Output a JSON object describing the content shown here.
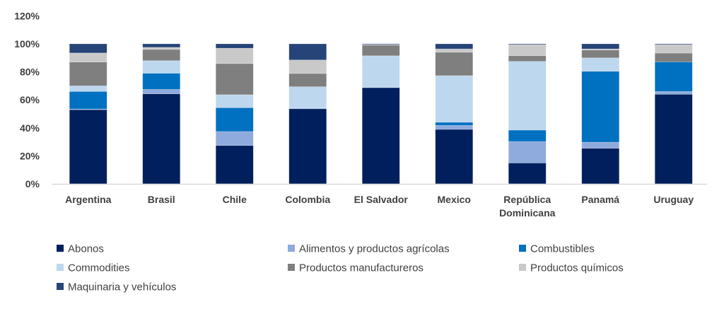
{
  "chart_data": {
    "type": "bar",
    "stacked": true,
    "title": "",
    "xlabel": "",
    "ylabel": "",
    "ylim": [
      0,
      120
    ],
    "yticks": [
      "0%",
      "20%",
      "40%",
      "60%",
      "80%",
      "100%",
      "120%"
    ],
    "ytick_values": [
      0,
      20,
      40,
      60,
      80,
      100,
      120
    ],
    "grid": false,
    "legend_position": "bottom",
    "categories": [
      "Argentina",
      "Brasil",
      "Chile",
      "Colombia",
      "El Salvador",
      "Mexico",
      "República Dominicana",
      "Panamá",
      "Uruguay"
    ],
    "category_lines": [
      [
        "Argentina"
      ],
      [
        "Brasil"
      ],
      [
        "Chile"
      ],
      [
        "Colombia"
      ],
      [
        "El Salvador"
      ],
      [
        "Mexico"
      ],
      [
        "República",
        "Dominicana"
      ],
      [
        "Panamá"
      ],
      [
        "Uruguay"
      ]
    ],
    "series": [
      {
        "name": "Abonos",
        "color": "#001F5C",
        "values": [
          53,
          64.3,
          27.4,
          53.6,
          68.7,
          38.9,
          14.9,
          25.4,
          64
        ]
      },
      {
        "name": "Alimentos y productos agrícolas",
        "color": "#8FAADC",
        "values": [
          0.5,
          3.2,
          10,
          0.5,
          0.3,
          2.9,
          15.4,
          4.4,
          2
        ]
      },
      {
        "name": "Combustibles",
        "color": "#0070C0",
        "values": [
          12.5,
          11.5,
          17,
          0,
          0,
          2.2,
          8.1,
          50.6,
          21.1
        ]
      },
      {
        "name": "Commodities",
        "color": "#BDD7EE",
        "values": [
          4,
          9,
          9.3,
          15.3,
          22.5,
          33.3,
          49.1,
          9.6,
          0
        ]
      },
      {
        "name": "Productos manufactureros",
        "color": "#7F7F7F",
        "values": [
          17,
          8,
          22.2,
          9.4,
          7.6,
          16.7,
          4,
          5.6,
          6.3
        ]
      },
      {
        "name": "Productos químicos",
        "color": "#C9C9C9",
        "values": [
          6.5,
          1.5,
          11,
          9.7,
          0.4,
          2.4,
          8,
          0.8,
          6.1
        ]
      },
      {
        "name": "Maquinaria y vehículos",
        "color": "#264478",
        "values": [
          6.5,
          2.5,
          3.1,
          11.5,
          0.5,
          3.6,
          0.5,
          3.6,
          0.5
        ]
      }
    ]
  }
}
